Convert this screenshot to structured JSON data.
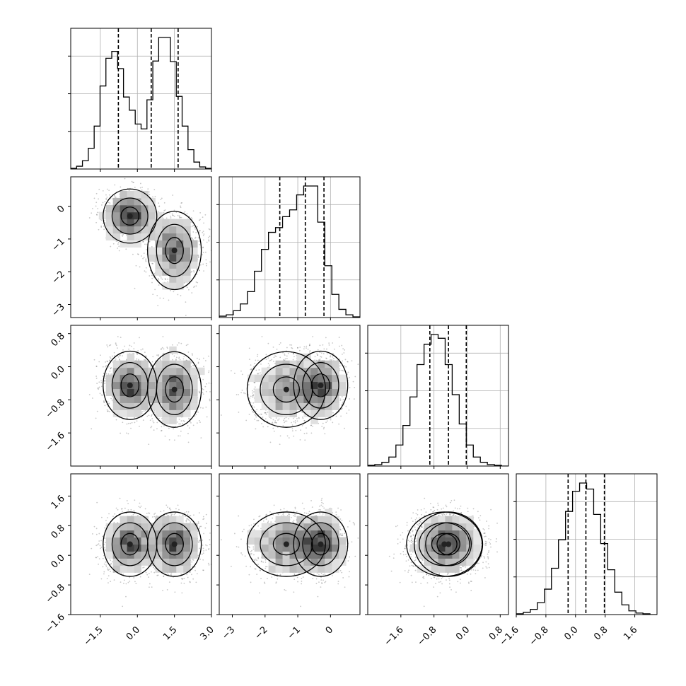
{
  "chart_data": {
    "type": "corner",
    "title": "",
    "n_params": 4,
    "grid": true,
    "quantile_lines": "dashed",
    "parameters": [
      {
        "range": [
          -2.7,
          3.0
        ],
        "ticks": [
          "-1.5",
          "0.0",
          "1.5",
          "3.0"
        ],
        "tick_values": [
          -1.5,
          0.0,
          1.5,
          3.0
        ],
        "quantiles": [
          -0.77,
          0.56,
          1.65
        ],
        "histogram": [
          1,
          4,
          12,
          30,
          62,
          120,
          160,
          170,
          145,
          104,
          85,
          65,
          58,
          100,
          156,
          190,
          190,
          155,
          105,
          62,
          28,
          10,
          3,
          1
        ]
      },
      {
        "range": [
          -3.4,
          0.9
        ],
        "ticks": [
          "-3",
          "-2",
          "-1",
          "0"
        ],
        "tick_values": [
          -3,
          -2,
          -1,
          0
        ],
        "quantiles": [
          -1.55,
          -0.77,
          -0.2
        ],
        "histogram": [
          2,
          4,
          10,
          20,
          38,
          68,
          100,
          125,
          132,
          148,
          158,
          180,
          193,
          193,
          140,
          76,
          34,
          12,
          4,
          1
        ]
      },
      {
        "range": [
          -2.4,
          1.0
        ],
        "ticks": [
          "-1.6",
          "-0.8",
          "0.0",
          "0.8"
        ],
        "tick_values": [
          -1.6,
          -0.8,
          0.0,
          0.8
        ],
        "quantiles": [
          -0.9,
          -0.45,
          -0.02
        ],
        "histogram": [
          1,
          2,
          5,
          12,
          28,
          54,
          92,
          135,
          162,
          175,
          170,
          135,
          95,
          56,
          28,
          12,
          5,
          2,
          1,
          0
        ]
      },
      {
        "range": [
          -1.6,
          2.2
        ],
        "ticks": [
          "-1.6",
          "-0.8",
          "0.0",
          "0.8",
          "1.6"
        ],
        "tick_values": [
          -1.6,
          -0.8,
          0.0,
          0.8,
          1.6
        ],
        "quantiles": [
          -0.2,
          0.28,
          0.78
        ],
        "histogram": [
          1,
          3,
          7,
          16,
          34,
          62,
          100,
          138,
          165,
          176,
          168,
          134,
          95,
          60,
          30,
          13,
          5,
          2,
          1,
          0
        ]
      }
    ],
    "scatter_modes": [
      [
        {
          "mean": -0.3,
          "sd": 0.5,
          "w": 0.5
        },
        {
          "mean": 1.5,
          "sd": 0.5,
          "w": 0.5
        }
      ],
      [
        {
          "mean": -0.3,
          "sd": 0.38
        },
        {
          "mean": -1.35,
          "sd": 0.55
        }
      ],
      [
        {
          "mean": -0.45,
          "sd": 0.38
        },
        {
          "mean": -0.55,
          "sd": 0.42
        }
      ],
      [
        {
          "mean": 0.3,
          "sd": 0.4
        },
        {
          "mean": 0.3,
          "sd": 0.4
        }
      ]
    ]
  }
}
